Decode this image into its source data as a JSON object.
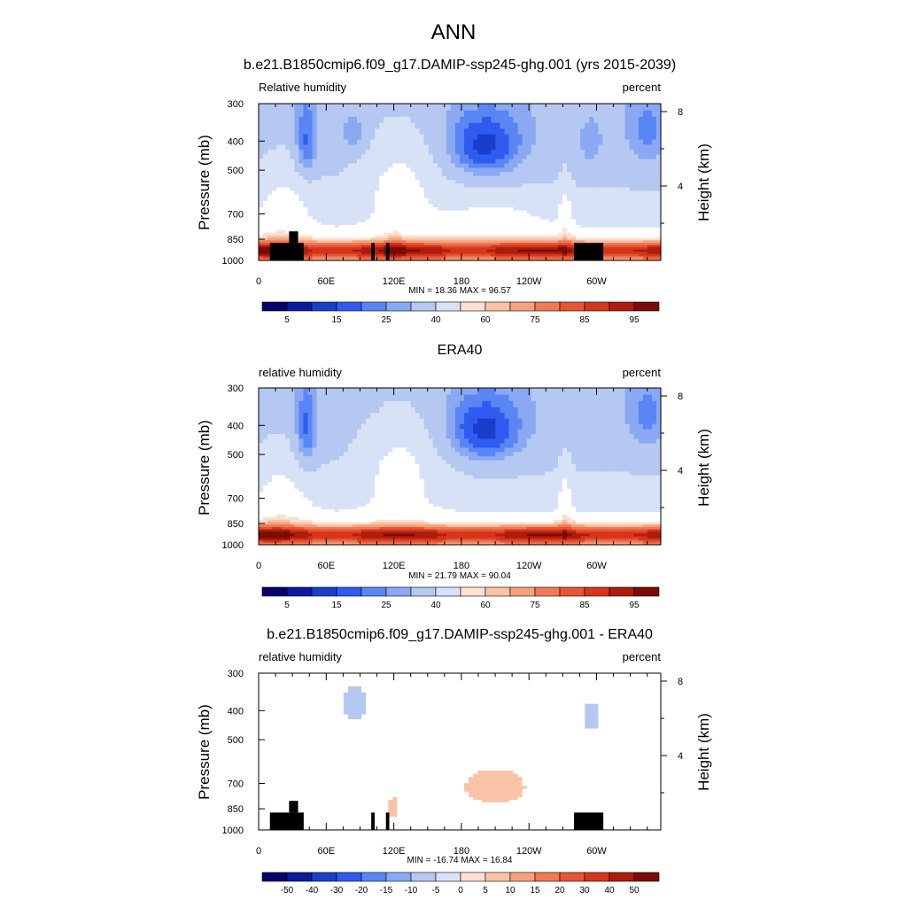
{
  "figure": {
    "title": "ANN"
  },
  "colors": {
    "diverging": [
      "#08006b",
      "#0a1c9e",
      "#1a3ec9",
      "#2f5bf0",
      "#5a86f5",
      "#8aa9f2",
      "#b4c8f1",
      "#d8e2f7",
      "#ffffff",
      "#fce0d0",
      "#f8c3a6",
      "#f4a27e",
      "#ef7a55",
      "#e85532",
      "#d5361c",
      "#ad1c0d",
      "#7d0a05"
    ],
    "land_mask": "#000000"
  },
  "chart_data": [
    {
      "type": "heatmap",
      "title": "b.e21.B1850cmip6.f09_g17.DAMIP-ssp245-ghg.001 (yrs 2015-2039)",
      "left_label": "Relative humidity",
      "right_label": "percent",
      "ylabel": "Pressure (mb)",
      "ylabel_right": "Height (km)",
      "x_ticks": [
        "0",
        "60E",
        "120E",
        "180",
        "120W",
        "60W"
      ],
      "x_tick_values": [
        0,
        60,
        120,
        180,
        240,
        300
      ],
      "xlim": [
        0,
        357
      ],
      "y_ticks": [
        "300",
        "400",
        "500",
        "700",
        "850",
        "1000"
      ],
      "y_tick_values": [
        300,
        400,
        500,
        700,
        850,
        1000
      ],
      "ylim": [
        300,
        1000
      ],
      "height_ticks": [
        "8",
        "4"
      ],
      "height_tick_values": [
        8,
        4
      ],
      "stats": "MIN =  18.36  MAX =  96.57",
      "colorbar_labels": [
        "5",
        "15",
        "25",
        "40",
        "60",
        "75",
        "85",
        "95"
      ],
      "field": "model"
    },
    {
      "type": "heatmap",
      "title": "ERA40",
      "left_label": "relative humidity",
      "right_label": "percent",
      "ylabel": "Pressure (mb)",
      "ylabel_right": "Height (km)",
      "x_ticks": [
        "0",
        "60E",
        "120E",
        "180",
        "120W",
        "60W"
      ],
      "x_tick_values": [
        0,
        60,
        120,
        180,
        240,
        300
      ],
      "xlim": [
        0,
        357
      ],
      "y_ticks": [
        "300",
        "400",
        "500",
        "700",
        "850",
        "1000"
      ],
      "y_tick_values": [
        300,
        400,
        500,
        700,
        850,
        1000
      ],
      "ylim": [
        300,
        1000
      ],
      "height_ticks": [
        "8",
        "4"
      ],
      "height_tick_values": [
        8,
        4
      ],
      "stats": "MIN =  21.79  MAX =  90.04",
      "colorbar_labels": [
        "5",
        "15",
        "25",
        "40",
        "60",
        "75",
        "85",
        "95"
      ],
      "field": "obs"
    },
    {
      "type": "heatmap",
      "title": "b.e21.B1850cmip6.f09_g17.DAMIP-ssp245-ghg.001 - ERA40",
      "left_label": "relative humidity",
      "right_label": "percent",
      "ylabel": "Pressure (mb)",
      "ylabel_right": "Height (km)",
      "x_ticks": [
        "0",
        "60E",
        "120E",
        "180",
        "120W",
        "60W"
      ],
      "x_tick_values": [
        0,
        60,
        120,
        180,
        240,
        300
      ],
      "xlim": [
        0,
        357
      ],
      "y_ticks": [
        "300",
        "400",
        "500",
        "700",
        "850",
        "1000"
      ],
      "y_tick_values": [
        300,
        400,
        500,
        700,
        850,
        1000
      ],
      "ylim": [
        300,
        1000
      ],
      "height_ticks": [
        "8",
        "4"
      ],
      "height_tick_values": [
        8,
        4
      ],
      "stats": "MIN = -16.74  MAX =  16.84",
      "colorbar_labels": [
        "-50",
        "-40",
        "-30",
        "-20",
        "-15",
        "-10",
        "-5",
        "0",
        "5",
        "10",
        "15",
        "20",
        "30",
        "40",
        "50"
      ],
      "field": "diff"
    }
  ]
}
